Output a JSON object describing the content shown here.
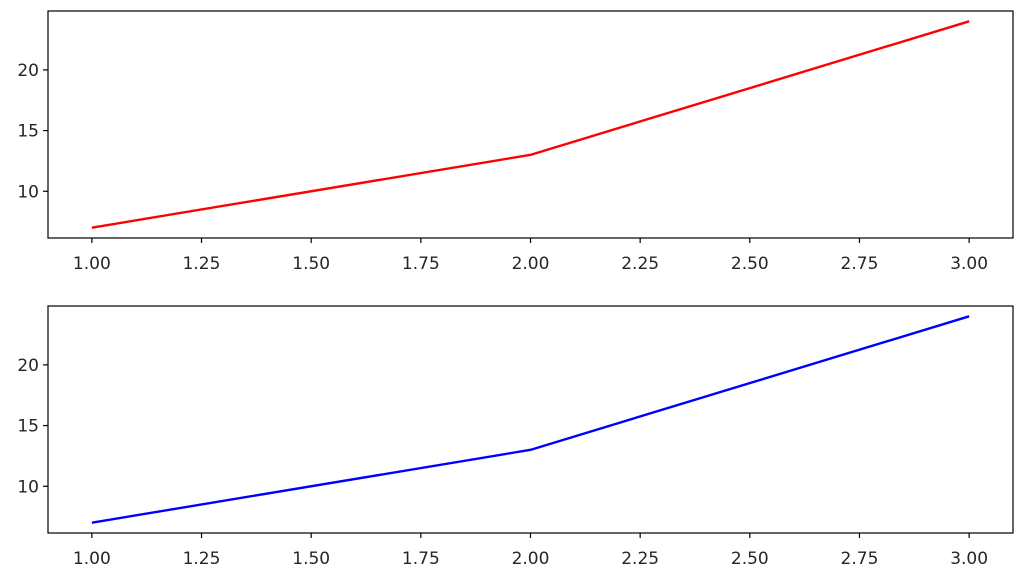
{
  "chart_data": [
    {
      "type": "line",
      "title": "",
      "xlabel": "",
      "ylabel": "",
      "xlim": [
        0.9,
        3.1
      ],
      "ylim": [
        6.15,
        24.85
      ],
      "xticks": [
        1.0,
        1.25,
        1.5,
        1.75,
        2.0,
        2.25,
        2.5,
        2.75,
        3.0
      ],
      "xtick_labels": [
        "1.00",
        "1.25",
        "1.50",
        "1.75",
        "2.00",
        "2.25",
        "2.50",
        "2.75",
        "3.00"
      ],
      "yticks": [
        10,
        15,
        20
      ],
      "ytick_labels": [
        "10",
        "15",
        "20"
      ],
      "grid": false,
      "series": [
        {
          "x": [
            1,
            2,
            3
          ],
          "y": [
            7,
            13,
            24
          ],
          "color": "#ff0000"
        }
      ]
    },
    {
      "type": "line",
      "title": "",
      "xlabel": "",
      "ylabel": "",
      "xlim": [
        0.9,
        3.1
      ],
      "ylim": [
        6.15,
        24.85
      ],
      "xticks": [
        1.0,
        1.25,
        1.5,
        1.75,
        2.0,
        2.25,
        2.5,
        2.75,
        3.0
      ],
      "xtick_labels": [
        "1.00",
        "1.25",
        "1.50",
        "1.75",
        "2.00",
        "2.25",
        "2.50",
        "2.75",
        "3.00"
      ],
      "yticks": [
        10,
        15,
        20
      ],
      "ytick_labels": [
        "10",
        "15",
        "20"
      ],
      "grid": false,
      "series": [
        {
          "x": [
            1,
            2,
            3
          ],
          "y": [
            7,
            13,
            24
          ],
          "color": "#0000ff"
        }
      ]
    }
  ]
}
